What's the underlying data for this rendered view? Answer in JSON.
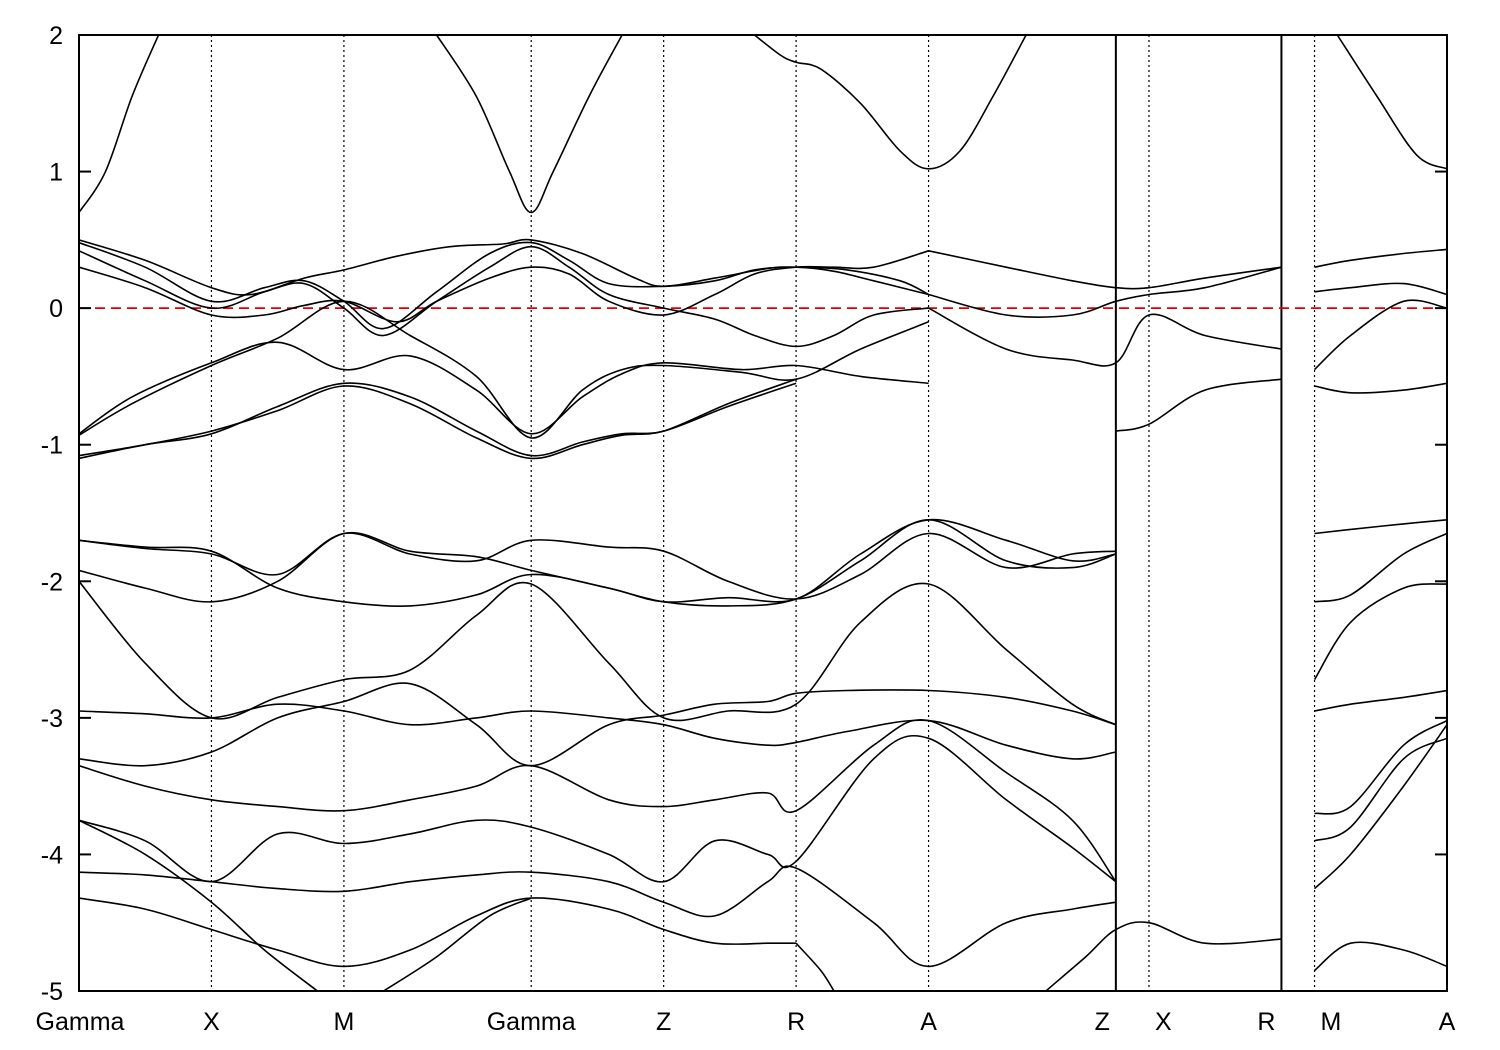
{
  "chart_data": {
    "type": "line",
    "title": "",
    "xlabel": "",
    "ylabel": "",
    "ylim": [
      -5,
      2
    ],
    "yticks": [
      -5,
      -4,
      -3,
      -2,
      -1,
      0,
      1,
      2
    ],
    "high_symmetry_points": [
      {
        "label": "Gamma",
        "k": 0
      },
      {
        "label": "X",
        "k": 1
      },
      {
        "label": "M",
        "k": 2
      },
      {
        "label": "Gamma",
        "k": 3.414
      },
      {
        "label": "Z",
        "k": 4.414
      },
      {
        "label": "R",
        "k": 5.414
      },
      {
        "label": "A",
        "k": 6.414
      },
      {
        "label": "Z",
        "k": 7.828
      },
      {
        "label": "X",
        "k": 8.078
      },
      {
        "label": "R",
        "k": 9.078
      },
      {
        "label": "M",
        "k": 9.328
      },
      {
        "label": "A",
        "k": 10.328
      }
    ],
    "xlim": [
      0,
      10.328
    ],
    "discontinuities": [
      7.828,
      9.078
    ],
    "fermi_level": {
      "value": 0,
      "color": "#e00000",
      "style": "dashed"
    },
    "line_color": "#000000",
    "series": [
      {
        "x": [
          0,
          0.2,
          0.4,
          0.6
        ],
        "y": [
          0.7,
          1.0,
          1.55,
          2.0
        ]
      },
      {
        "x": [
          2.7,
          3.0,
          3.25,
          3.414,
          3.58,
          3.85,
          4.1
        ],
        "y": [
          2.0,
          1.55,
          1.0,
          0.7,
          1.0,
          1.55,
          2.0
        ]
      },
      {
        "x": [
          5.1,
          5.3,
          5.414,
          5.6,
          5.9,
          6.2,
          6.414,
          6.65,
          6.9,
          7.15
        ],
        "y": [
          2.0,
          1.85,
          1.8,
          1.75,
          1.5,
          1.15,
          1.02,
          1.15,
          1.55,
          2.0
        ]
      },
      {
        "x": [
          9.5,
          9.8,
          10.1,
          10.328
        ],
        "y": [
          2.0,
          1.55,
          1.12,
          1.02
        ]
      },
      {
        "x": [
          0,
          0.5,
          1.0,
          1.3,
          1.7,
          2.0,
          2.4,
          2.8,
          3.2,
          3.414,
          3.8,
          4.2,
          4.414,
          4.8,
          5.2,
          5.414,
          5.8,
          6.2,
          6.414
        ],
        "y": [
          0.5,
          0.35,
          0.15,
          0.1,
          0.22,
          0.28,
          0.38,
          0.45,
          0.47,
          0.5,
          0.4,
          0.22,
          0.16,
          0.22,
          0.29,
          0.3,
          0.28,
          0.2,
          0.1
        ]
      },
      {
        "x": [
          0,
          0.5,
          1.0,
          1.4,
          1.7,
          2.0,
          2.3,
          2.7,
          3.1,
          3.414,
          3.7,
          4.0,
          4.414,
          4.8,
          5.1,
          5.414,
          5.7,
          6.0,
          6.414
        ],
        "y": [
          0.48,
          0.3,
          0.05,
          0.15,
          0.2,
          0.05,
          -0.15,
          0.12,
          0.4,
          0.48,
          0.35,
          0.18,
          0.16,
          0.2,
          0.28,
          0.3,
          0.27,
          0.2,
          0.1
        ]
      },
      {
        "x": [
          0,
          0.5,
          1.0,
          1.4,
          1.7,
          2.0,
          2.3,
          2.7,
          3.1,
          3.414,
          3.7,
          4.0,
          4.414,
          4.8,
          5.1,
          5.414,
          5.7,
          6.0,
          6.414
        ],
        "y": [
          0.42,
          0.2,
          0.0,
          0.12,
          0.18,
          0.0,
          -0.2,
          0.05,
          0.3,
          0.45,
          0.3,
          0.1,
          0.0,
          -0.08,
          -0.2,
          -0.28,
          -0.2,
          -0.05,
          0.0
        ]
      },
      {
        "x": [
          0,
          0.5,
          1.0,
          1.4,
          1.7,
          2.0,
          2.4,
          2.7,
          3.1,
          3.414,
          3.7,
          4.0,
          4.414,
          4.8,
          5.1,
          5.414,
          5.7,
          6.0,
          6.414
        ],
        "y": [
          0.3,
          0.15,
          -0.05,
          -0.05,
          0.02,
          0.05,
          -0.1,
          0.05,
          0.22,
          0.3,
          0.25,
          0.05,
          -0.05,
          0.1,
          0.25,
          0.3,
          0.3,
          0.3,
          0.42
        ]
      },
      {
        "x": [
          0,
          0.4,
          1.0,
          1.5,
          2.0,
          2.5,
          3.0,
          3.414,
          3.8,
          4.1,
          4.414,
          5.0,
          5.414,
          5.9,
          6.414
        ],
        "y": [
          -0.92,
          -0.65,
          -0.4,
          -0.25,
          -0.45,
          -0.35,
          -0.6,
          -0.92,
          -0.65,
          -0.48,
          -0.4,
          -0.45,
          -0.42,
          -0.5,
          -0.55
        ]
      },
      {
        "x": [
          0,
          0.4,
          1.0,
          1.5,
          2.0,
          2.5,
          3.0,
          3.414,
          3.8,
          4.1,
          4.414,
          5.0,
          5.414,
          5.9,
          6.414
        ],
        "y": [
          -0.93,
          -0.7,
          -0.42,
          -0.22,
          0.05,
          -0.2,
          -0.5,
          -0.95,
          -0.6,
          -0.45,
          -0.42,
          -0.47,
          -0.52,
          -0.3,
          -0.1
        ]
      },
      {
        "x": [
          0,
          0.5,
          1.0,
          1.5,
          2.0,
          2.5,
          3.0,
          3.414,
          3.8,
          4.1,
          4.414,
          4.9,
          5.414
        ],
        "y": [
          -1.08,
          -1.0,
          -0.9,
          -0.75,
          -0.57,
          -0.7,
          -0.95,
          -1.1,
          -1.0,
          -0.93,
          -0.9,
          -0.7,
          -0.52
        ]
      },
      {
        "x": [
          0,
          0.5,
          1.0,
          1.5,
          2.0,
          2.5,
          3.0,
          3.414,
          3.8,
          4.1,
          4.414,
          4.9,
          5.414
        ],
        "y": [
          -1.1,
          -1.0,
          -0.92,
          -0.72,
          -0.55,
          -0.65,
          -0.9,
          -1.08,
          -0.98,
          -0.92,
          -0.9,
          -0.72,
          -0.55
        ]
      },
      {
        "x": [
          0,
          0.5,
          1.0,
          1.5,
          2.0,
          2.5,
          3.0,
          3.414,
          4.0,
          4.414,
          4.9,
          5.414,
          5.9,
          6.414,
          7.0,
          7.5,
          7.828
        ],
        "y": [
          -1.7,
          -1.75,
          -1.78,
          -2.05,
          -2.15,
          -2.18,
          -2.1,
          -1.95,
          -2.05,
          -2.15,
          -2.12,
          -2.13,
          -1.8,
          -1.55,
          -1.7,
          -1.85,
          -1.8
        ]
      },
      {
        "x": [
          0,
          0.5,
          1.0,
          1.5,
          2.0,
          2.5,
          3.0,
          3.414,
          4.0,
          4.414,
          4.9,
          5.414,
          5.9,
          6.414,
          7.0,
          7.5,
          7.828
        ],
        "y": [
          -1.7,
          -1.76,
          -1.8,
          -1.95,
          -1.65,
          -1.8,
          -1.85,
          -1.7,
          -1.75,
          -1.78,
          -2.0,
          -2.13,
          -1.95,
          -1.65,
          -1.9,
          -1.8,
          -1.78
        ]
      },
      {
        "x": [
          0,
          0.5,
          1.0,
          1.5,
          2.0,
          2.5,
          3.0,
          3.414,
          4.0,
          4.414,
          4.9,
          5.414,
          5.9,
          6.414,
          7.0,
          7.5,
          7.828
        ],
        "y": [
          -1.92,
          -2.05,
          -2.15,
          -2.0,
          -1.65,
          -1.78,
          -1.82,
          -1.92,
          -2.05,
          -2.15,
          -2.18,
          -2.13,
          -1.85,
          -1.55,
          -1.85,
          -1.9,
          -1.8
        ]
      },
      {
        "x": [
          0,
          0.5,
          1.0,
          1.5,
          2.0,
          2.5,
          3.0,
          3.414,
          4.0,
          4.414,
          4.9,
          5.414,
          5.9,
          6.414,
          7.0,
          7.5,
          7.828
        ],
        "y": [
          -2.0,
          -2.6,
          -3.0,
          -2.85,
          -2.72,
          -2.65,
          -2.25,
          -2.02,
          -2.6,
          -3.0,
          -2.95,
          -2.9,
          -2.3,
          -2.02,
          -2.5,
          -2.9,
          -3.05
        ]
      },
      {
        "x": [
          0,
          0.5,
          1.0,
          1.5,
          2.0,
          2.5,
          3.0,
          3.414,
          4.0,
          4.414,
          4.8,
          5.2,
          5.414,
          5.8,
          6.414,
          7.0,
          7.5,
          7.828
        ],
        "y": [
          -2.95,
          -2.97,
          -3.0,
          -2.9,
          -2.95,
          -3.05,
          -3.0,
          -2.95,
          -3.0,
          -3.05,
          -3.15,
          -3.2,
          -3.18,
          -3.1,
          -3.02,
          -3.2,
          -3.3,
          -3.25
        ]
      },
      {
        "x": [
          0,
          0.5,
          1.0,
          1.5,
          2.0,
          2.5,
          3.0,
          3.414,
          4.0,
          4.414,
          4.8,
          5.2,
          5.414,
          5.8,
          6.414,
          7.0,
          7.5,
          7.828
        ],
        "y": [
          -3.3,
          -3.35,
          -3.25,
          -3.0,
          -2.88,
          -2.75,
          -3.05,
          -3.35,
          -3.05,
          -2.98,
          -2.9,
          -2.88,
          -2.82,
          -2.8,
          -2.8,
          -2.85,
          -2.95,
          -3.05
        ]
      },
      {
        "x": [
          0,
          0.5,
          1.0,
          1.5,
          2.0,
          2.5,
          3.0,
          3.414,
          4.0,
          4.414,
          4.8,
          5.2,
          5.414,
          6.0,
          6.414,
          7.0,
          7.5,
          7.828
        ],
        "y": [
          -3.35,
          -3.5,
          -3.6,
          -3.65,
          -3.68,
          -3.6,
          -3.5,
          -3.35,
          -3.6,
          -3.65,
          -3.6,
          -3.55,
          -3.68,
          -3.2,
          -3.02,
          -3.4,
          -3.75,
          -4.2
        ]
      },
      {
        "x": [
          0,
          0.5,
          1.0,
          1.5,
          2.0,
          2.5,
          3.0,
          3.414,
          4.0,
          4.414,
          4.8,
          5.2,
          5.414,
          6.0,
          6.414,
          7.0,
          7.5,
          7.828
        ],
        "y": [
          -3.75,
          -3.9,
          -4.2,
          -3.85,
          -3.92,
          -3.85,
          -3.75,
          -3.8,
          -4.0,
          -4.2,
          -3.9,
          -4.0,
          -4.05,
          -3.3,
          -3.15,
          -3.6,
          -3.95,
          -4.2
        ]
      },
      {
        "x": [
          0,
          0.5,
          1.0,
          1.5,
          2.0,
          2.5,
          3.0,
          3.414,
          4.0,
          4.414,
          4.8,
          5.2,
          5.414,
          6.0,
          6.414,
          7.0,
          7.5,
          7.828
        ],
        "y": [
          -4.13,
          -4.15,
          -4.2,
          -4.25,
          -4.27,
          -4.2,
          -4.15,
          -4.13,
          -4.2,
          -4.35,
          -4.45,
          -4.2,
          -4.1,
          -4.5,
          -4.82,
          -4.5,
          -4.4,
          -4.35
        ]
      },
      {
        "x": [
          0,
          0.5,
          1.0,
          1.5,
          2.0,
          2.5,
          3.0,
          3.414,
          4.0,
          4.414,
          4.8,
          5.2,
          5.414
        ],
        "y": [
          -4.32,
          -4.4,
          -4.55,
          -4.7,
          -4.82,
          -4.7,
          -4.45,
          -4.32,
          -4.4,
          -4.55,
          -4.65,
          -4.65,
          -4.65
        ]
      },
      {
        "x": [
          0,
          0.5,
          1.0,
          1.4,
          1.8
        ],
        "y": [
          -3.75,
          -4.0,
          -4.35,
          -4.7,
          -5.0
        ]
      },
      {
        "x": [
          2.3,
          2.7,
          3.1,
          3.414
        ],
        "y": [
          -5.0,
          -4.75,
          -4.45,
          -4.32
        ]
      },
      {
        "x": [
          5.414,
          5.6,
          5.7
        ],
        "y": [
          -4.65,
          -4.85,
          -5.0
        ]
      },
      {
        "x": [
          7.3,
          7.6,
          7.828,
          8.078,
          8.5,
          9.078
        ],
        "y": [
          -5.0,
          -4.75,
          -4.55,
          -4.5,
          -4.65,
          -4.62
        ]
      },
      {
        "x": [
          6.414,
          7.0,
          7.5,
          7.828,
          8.078,
          8.5,
          9.078
        ],
        "y": [
          0.42,
          0.3,
          0.2,
          0.15,
          0.15,
          0.22,
          0.3
        ]
      },
      {
        "x": [
          6.414,
          7.0,
          7.5,
          7.828,
          8.078,
          8.5,
          9.078
        ],
        "y": [
          0.1,
          -0.05,
          -0.05,
          0.05,
          0.1,
          0.15,
          0.3
        ]
      },
      {
        "x": [
          6.414,
          7.0,
          7.5,
          7.828,
          8.078,
          8.5,
          9.078
        ],
        "y": [
          0.0,
          -0.3,
          -0.38,
          -0.4,
          -0.05,
          -0.2,
          -0.3
        ]
      },
      {
        "x": [
          7.828,
          8.078,
          8.5,
          9.078
        ],
        "y": [
          -0.9,
          -0.85,
          -0.6,
          -0.52
        ]
      },
      {
        "x": [
          9.328,
          9.6,
          10.0,
          10.328
        ],
        "y": [
          0.3,
          0.35,
          0.4,
          0.43
        ]
      },
      {
        "x": [
          9.328,
          9.6,
          10.0,
          10.328
        ],
        "y": [
          0.12,
          0.15,
          0.18,
          0.1
        ]
      },
      {
        "x": [
          9.328,
          9.6,
          10.0,
          10.328
        ],
        "y": [
          -0.45,
          -0.2,
          0.05,
          0.0
        ]
      },
      {
        "x": [
          9.328,
          9.6,
          10.0,
          10.328
        ],
        "y": [
          -0.57,
          -0.62,
          -0.6,
          -0.55
        ]
      },
      {
        "x": [
          9.328,
          9.6,
          10.0,
          10.328
        ],
        "y": [
          -1.65,
          -1.62,
          -1.58,
          -1.55
        ]
      },
      {
        "x": [
          9.328,
          9.6,
          10.0,
          10.328
        ],
        "y": [
          -2.15,
          -2.1,
          -1.8,
          -1.65
        ]
      },
      {
        "x": [
          9.328,
          9.6,
          10.0,
          10.328
        ],
        "y": [
          -2.72,
          -2.3,
          -2.05,
          -2.02
        ]
      },
      {
        "x": [
          9.328,
          9.6,
          10.0,
          10.328
        ],
        "y": [
          -2.95,
          -2.9,
          -2.85,
          -2.8
        ]
      },
      {
        "x": [
          9.328,
          9.6,
          10.0,
          10.328
        ],
        "y": [
          -3.7,
          -3.65,
          -3.2,
          -3.02
        ]
      },
      {
        "x": [
          9.328,
          9.6,
          10.0,
          10.328
        ],
        "y": [
          -3.9,
          -3.8,
          -3.3,
          -3.15
        ]
      },
      {
        "x": [
          9.328,
          9.6,
          10.0,
          10.328
        ],
        "y": [
          -4.25,
          -4.0,
          -3.5,
          -3.05
        ]
      },
      {
        "x": [
          9.328,
          9.6,
          10.0,
          10.328
        ],
        "y": [
          -4.85,
          -4.65,
          -4.7,
          -4.82
        ]
      }
    ]
  }
}
